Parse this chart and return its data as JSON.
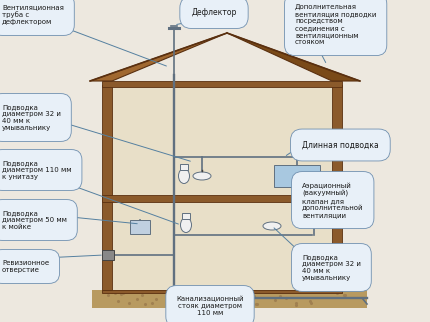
{
  "bg_color": "#ede8df",
  "house_fill": "#e8dfc8",
  "roof_brown": "#7a4a1e",
  "wall_brown": "#8b5a2b",
  "floor_tan": "#c8a87a",
  "pipe_color": "#607080",
  "pipe_lw": 1.2,
  "water_blue": "#a8c8e0",
  "fixture_white": "#f0f0f0",
  "line_color": "#5580a0",
  "box_fill": "#e8f0f8",
  "box_edge": "#7090b0",
  "text_color": "#1a1a1a",
  "font_size": 5.0,
  "labels": {
    "deflector": "Дефлектор",
    "vent_pipe": "Вентиляционная\nтруба с\nдефлектором",
    "supply_32_40_upper": "Подводка\nдиаметром 32 и\n40 мм к\nумывальнику",
    "supply_110_toilet": "Подводка\nдиаметром 110 мм\nк унитазу",
    "supply_50_sink": "Подводка\nдиаметром 50 мм\nк мойке",
    "revision": "Ревизионное\nотверстие",
    "add_vent": "Дополнительная\nвентиляция подводки\nпосредством\nсоединения с\nвентиляционным\nстояком",
    "long_supply": "Длинная подводка",
    "aeration_valve": "Аэрационный\n(вакуумный)\nклапан для\nдополнительной\nвентиляции",
    "sewer_stack": "Канализационный\nстояк диаметром\n110 мм",
    "supply_32_40_lower": "Подводка\nдиаметром 32 и\n40 мм к\nумывальнику"
  }
}
